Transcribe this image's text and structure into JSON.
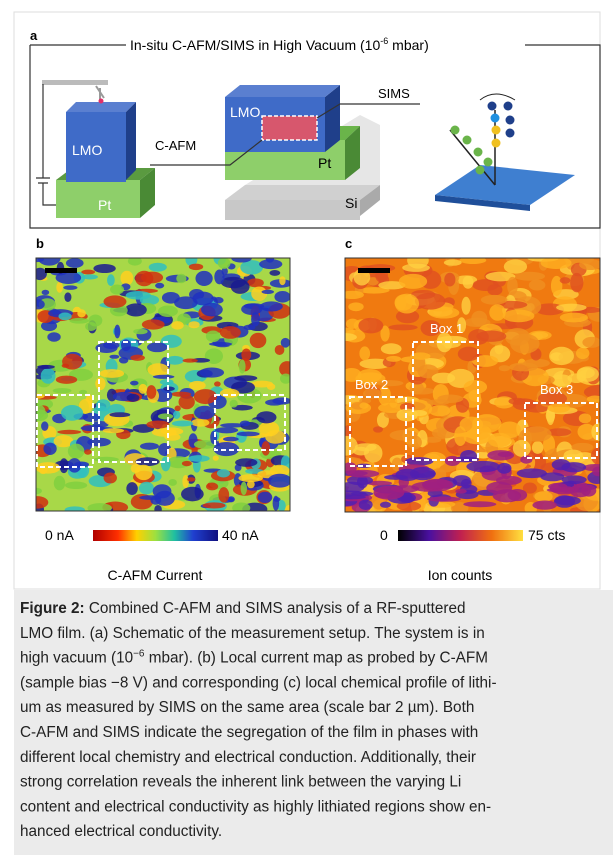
{
  "figure": {
    "panel_a": {
      "letter": "a",
      "title_before": "In-situ C-AFM/SIMS  in High Vacuum (10",
      "title_sup": "-6",
      "title_after": " mbar)",
      "left_block": "LMO",
      "left_base": "Pt",
      "probe": "C-AFM",
      "sims": "SIMS",
      "mid_block": "LMO",
      "mid_layer": "Pt",
      "mid_substrate": "Si"
    },
    "panel_b": {
      "letter": "b",
      "scale_min": "0 nA",
      "scale_max": "40 nA",
      "label": "C-AFM Current"
    },
    "panel_c": {
      "letter": "c",
      "scale_min": "0",
      "scale_max": "75 cts",
      "label": "Ion counts",
      "boxes": [
        "Box 1",
        "Box 2",
        "Box 3"
      ]
    }
  },
  "caption": {
    "label": "Figure 2:",
    "lines": [
      "Combined C-AFM and SIMS analysis of a RF-sputtered",
      "LMO film. (a) Schematic of the measurement setup. The system is in",
      {
        "before": "high vacuum (10",
        "sup": "−6",
        "after": " mbar). (b) Local current map as probed by C-AFM"
      },
      "(sample bias −8 V) and corresponding (c) local chemical profile of lithi-",
      "um as measured by SIMS on the same area (scale bar 2 µm). Both",
      "C-AFM and SIMS indicate the segregation of the film in phases with",
      "different local chemistry and electrical conduction. Additionally, their",
      "strong correlation reveals the inherent link between the varying Li",
      "content and electrical conductivity as highly lithiated regions show en-",
      "hanced electrical conductivity."
    ]
  }
}
